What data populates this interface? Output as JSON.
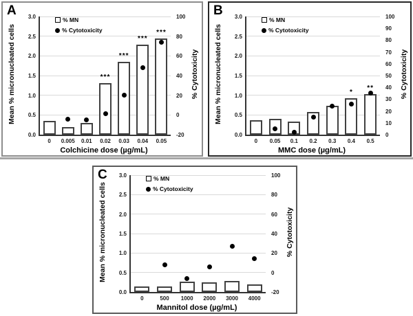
{
  "colors": {
    "bar_fill": "#ffffff",
    "bar_border": "#404040",
    "dot": "#000000",
    "gridline": "#d9d9d9",
    "axis_line": "#333333",
    "panel_border_a": "#8c8c8c",
    "panel_border_b": "#262626",
    "panel_border_c": "#595959",
    "divider": "#a6a6a6",
    "background": "#ffffff"
  },
  "chart_data": [
    {
      "type": "bar",
      "panel_label": "A",
      "xlabel": "Colchicine dose (µg/mL)",
      "ylabel_left": "Mean % micronucleated cells",
      "ylabel_right": "% Cytotoxicity",
      "legend": [
        "% MN",
        "% Cytotoxicity"
      ],
      "categories": [
        "0",
        "0.005",
        "0.01",
        "0.02",
        "0.03",
        "0.04",
        "0.05"
      ],
      "series": [
        {
          "name": "% MN",
          "type": "bar",
          "axis": "left",
          "values": [
            0.35,
            0.2,
            0.3,
            1.3,
            1.85,
            2.28,
            2.45
          ]
        },
        {
          "name": "% Cytotoxicity",
          "type": "scatter",
          "axis": "right",
          "values": [
            null,
            -4,
            -5,
            1,
            20,
            48,
            74
          ]
        }
      ],
      "significance": [
        "",
        "",
        "",
        "***",
        "***",
        "***",
        "***"
      ],
      "left_axis": {
        "min": 0,
        "max": 3,
        "step": 0.5,
        "ticks": [
          "0.0",
          "0.5",
          "1.0",
          "1.5",
          "2.0",
          "2.5",
          "3.0"
        ]
      },
      "right_axis": {
        "min": -20,
        "max": 100,
        "step": 20,
        "ticks": [
          "-20",
          "0",
          "20",
          "40",
          "60",
          "80",
          "100"
        ]
      },
      "grid": true,
      "legend_position": "top-left-inside"
    },
    {
      "type": "bar",
      "panel_label": "B",
      "xlabel": "MMC dose (µg/mL)",
      "ylabel_left": "Mean % micronucleated cells",
      "ylabel_right": "% Cytotoxicity",
      "legend": [
        "% MN",
        "% Cytotoxicity"
      ],
      "categories": [
        "0",
        "0.05",
        "0.1",
        "0.2",
        "0.3",
        "0.4",
        "0.5"
      ],
      "series": [
        {
          "name": "% MN",
          "type": "bar",
          "axis": "left",
          "values": [
            0.37,
            0.4,
            0.33,
            0.58,
            0.74,
            0.93,
            1.03
          ]
        },
        {
          "name": "% Cytotoxicity",
          "type": "scatter",
          "axis": "right",
          "values": [
            null,
            5,
            2,
            15,
            24,
            26,
            35
          ]
        }
      ],
      "significance": [
        "",
        "",
        "",
        "",
        "",
        "*",
        "**"
      ],
      "left_axis": {
        "min": 0,
        "max": 3,
        "step": 0.5,
        "ticks": [
          "0.0",
          "0.5",
          "1.0",
          "1.5",
          "2.0",
          "2.5",
          "3.0"
        ]
      },
      "right_axis": {
        "min": 0,
        "max": 100,
        "step": 10,
        "ticks": [
          "0",
          "10",
          "20",
          "30",
          "40",
          "50",
          "60",
          "70",
          "80",
          "90",
          "100"
        ]
      },
      "grid": true,
      "legend_position": "top-left-inside"
    },
    {
      "type": "bar",
      "panel_label": "C",
      "xlabel": "Mannitol dose (µg/mL)",
      "ylabel_left": "Mean % micronucleated cells",
      "ylabel_right": "% Cytotoxicity",
      "legend": [
        "% MN",
        "% Cytotoxicity"
      ],
      "categories": [
        "0",
        "500",
        "1000",
        "2000",
        "3000",
        "4000"
      ],
      "series": [
        {
          "name": "% MN",
          "type": "bar",
          "axis": "left",
          "values": [
            0.15,
            0.15,
            0.26,
            0.24,
            0.28,
            0.19
          ]
        },
        {
          "name": "% Cytotoxicity",
          "type": "scatter",
          "axis": "right",
          "values": [
            null,
            8,
            -6,
            6,
            27,
            14
          ]
        }
      ],
      "significance": [
        "",
        "",
        "",
        "",
        "",
        ""
      ],
      "left_axis": {
        "min": 0,
        "max": 3,
        "step": 0.5,
        "ticks": [
          "0.0",
          "0.5",
          "1.0",
          "1.5",
          "2.0",
          "2.5",
          "3.0"
        ]
      },
      "right_axis": {
        "min": -20,
        "max": 100,
        "step": 20,
        "ticks": [
          "-20",
          "0",
          "20",
          "40",
          "60",
          "80",
          "100"
        ]
      },
      "grid": true,
      "legend_position": "top-left-inside"
    }
  ]
}
